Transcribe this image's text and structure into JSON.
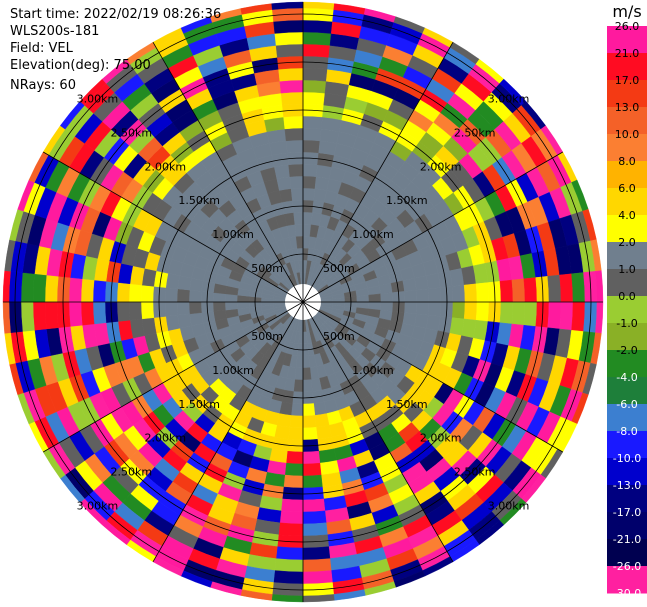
{
  "header": {
    "start_time": "Start time: 2022/02/19 08:26:36",
    "instrument": "WLS200s-181",
    "field": "Field: VEL",
    "elevation": "Elevation(deg): 75.00",
    "nrays": "NRays: 60"
  },
  "chart_data": {
    "type": "heatmap",
    "projection": "polar-ppi",
    "nrays": 60,
    "range_rings": [
      "500m",
      "1.00km",
      "1.50km",
      "2.00km",
      "2.50km",
      "3.00km"
    ],
    "colorbar": {
      "unit": "m/s",
      "ticks": [
        "26.0",
        "21.0",
        "17.0",
        "13.0",
        "10.0",
        "8.0",
        "6.0",
        "4.0",
        "2.0",
        "1.0",
        "0.0",
        "-1.0",
        "-2.0",
        "-4.0",
        "-6.0",
        "-8.0",
        "-10.0",
        "-13.0",
        "-17.0",
        "-21.0",
        "-26.0",
        "-30.0"
      ],
      "colors": [
        "#ff1a9e",
        "#ff0c22",
        "#f43a14",
        "#f46128",
        "#fb7f32",
        "#ffb300",
        "#ffd700",
        "#ffff00",
        "#707f8e",
        "#606060",
        "#9acd32",
        "#8ab026",
        "#228b22",
        "#1e7f3a",
        "#3c7fd0",
        "#1919ff",
        "#0000cd",
        "#000080",
        "#00006b",
        "#000050",
        "#ff20a0"
      ]
    }
  }
}
